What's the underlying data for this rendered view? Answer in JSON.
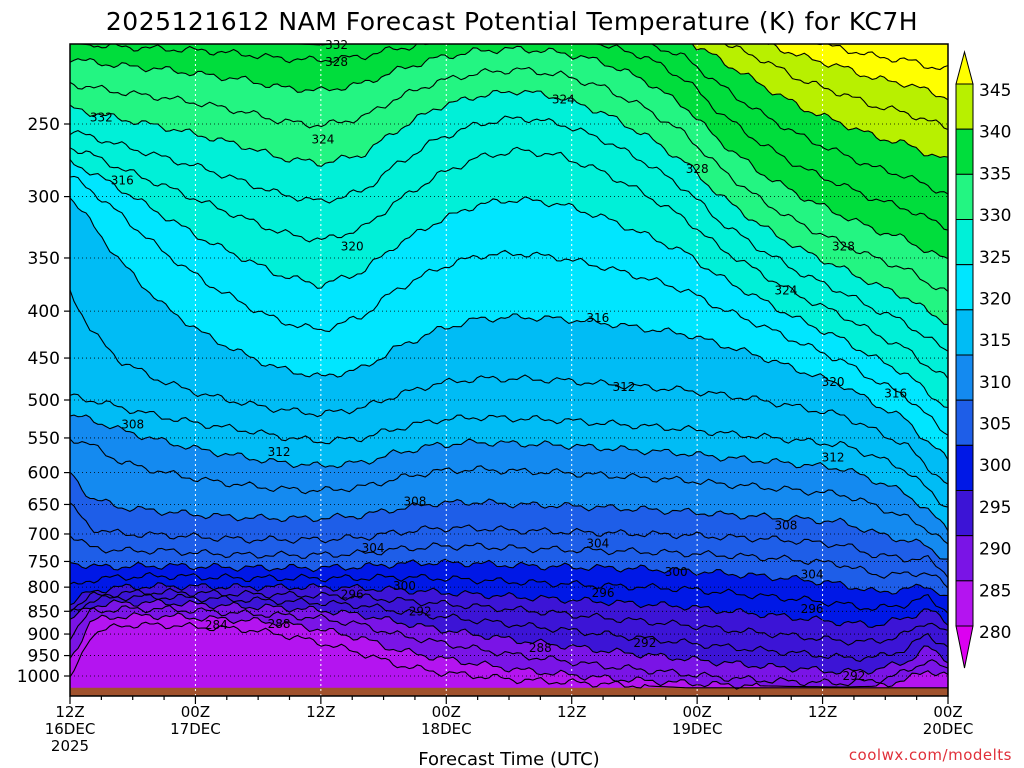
{
  "chart_data": {
    "type": "heatmap",
    "title": "2025121612 NAM Forecast Potential Temperature (K) for KC7H",
    "xlabel": "Forecast Time (UTC)",
    "ylabel": "",
    "credit": "coolwx.com/modelts",
    "x_ticks": [
      {
        "hour": 0,
        "line1": "12Z",
        "line2": "16DEC",
        "line3": "2025"
      },
      {
        "hour": 12,
        "line1": "00Z",
        "line2": "17DEC",
        "line3": ""
      },
      {
        "hour": 24,
        "line1": "12Z",
        "line2": "",
        "line3": ""
      },
      {
        "hour": 36,
        "line1": "00Z",
        "line2": "18DEC",
        "line3": ""
      },
      {
        "hour": 48,
        "line1": "12Z",
        "line2": "",
        "line3": ""
      },
      {
        "hour": 60,
        "line1": "00Z",
        "line2": "19DEC",
        "line3": ""
      },
      {
        "hour": 72,
        "line1": "12Z",
        "line2": "",
        "line3": ""
      },
      {
        "hour": 84,
        "line1": "00Z",
        "line2": "20DEC",
        "line3": ""
      }
    ],
    "x_range_hours": [
      0,
      84
    ],
    "y_axis": "pressure (hPa), log scale, inverted",
    "y_range": [
      1050,
      200
    ],
    "y_ticks": [
      250,
      300,
      350,
      400,
      450,
      500,
      550,
      600,
      650,
      700,
      750,
      800,
      850,
      900,
      950,
      1000
    ],
    "grid": true,
    "colorbar": {
      "ticks": [
        345,
        340,
        335,
        330,
        325,
        320,
        315,
        310,
        305,
        300,
        295,
        290,
        285,
        280
      ],
      "bins": [
        {
          "min": 340,
          "max": 345,
          "color": "#ffff00"
        },
        {
          "min": 335,
          "max": 340,
          "color": "#b8f000"
        },
        {
          "min": 330,
          "max": 335,
          "color": "#00dd3c"
        },
        {
          "min": 325,
          "max": 330,
          "color": "#23f582"
        },
        {
          "min": 320,
          "max": 325,
          "color": "#00f0d8"
        },
        {
          "min": 315,
          "max": 320,
          "color": "#00e6ff"
        },
        {
          "min": 310,
          "max": 315,
          "color": "#00bcf5"
        },
        {
          "min": 305,
          "max": 310,
          "color": "#148af0"
        },
        {
          "min": 300,
          "max": 305,
          "color": "#1e5ee8"
        },
        {
          "min": 295,
          "max": 300,
          "color": "#0018e6"
        },
        {
          "min": 290,
          "max": 295,
          "color": "#3c14d6"
        },
        {
          "min": 285,
          "max": 290,
          "color": "#7a14e6"
        },
        {
          "min": 280,
          "max": 285,
          "color": "#b414f0"
        },
        {
          "min": 275,
          "max": 280,
          "color": "#dc00f0"
        }
      ],
      "below_color": "#e60fff"
    },
    "terrain_color": "#a0522d",
    "surface_pressure_hPa": 1030,
    "contour_interval": 2,
    "key_times_h": [
      0,
      2,
      5,
      9,
      13,
      17,
      20,
      24,
      28,
      31,
      35,
      39,
      43,
      47,
      51,
      55,
      59,
      62,
      66,
      70,
      74,
      77,
      80,
      82,
      84
    ],
    "isentropes": [
      {
        "theta": 284,
        "p": [
          1010,
          900,
          880,
          880,
          885,
          890,
          900,
          920,
          945,
          970,
          990,
          1000,
          1010,
          1015,
          1020,
          1025,
          1030,
          1030,
          1030,
          1030,
          1030,
          1030,
          1030,
          1030,
          1030
        ]
      },
      {
        "theta": 286,
        "p": [
          960,
          870,
          860,
          860,
          865,
          870,
          875,
          890,
          910,
          935,
          955,
          970,
          985,
          995,
          1005,
          1012,
          1018,
          1022,
          1025,
          1027,
          1028,
          1026,
          1010,
          985,
          1000
        ]
      },
      {
        "theta": 288,
        "p": [
          905,
          850,
          845,
          845,
          850,
          855,
          858,
          865,
          880,
          900,
          918,
          935,
          950,
          962,
          975,
          985,
          995,
          1003,
          1010,
          1015,
          1018,
          1012,
          990,
          960,
          985
        ]
      },
      {
        "theta": 290,
        "p": [
          870,
          838,
          832,
          832,
          836,
          840,
          842,
          848,
          858,
          872,
          888,
          902,
          915,
          926,
          938,
          948,
          958,
          966,
          975,
          982,
          990,
          985,
          965,
          930,
          960
        ]
      },
      {
        "theta": 292,
        "p": [
          855,
          827,
          820,
          820,
          823,
          826,
          828,
          832,
          838,
          848,
          860,
          870,
          880,
          890,
          900,
          910,
          920,
          928,
          937,
          945,
          955,
          955,
          935,
          900,
          930
        ]
      },
      {
        "theta": 294,
        "p": [
          845,
          818,
          812,
          810,
          812,
          814,
          815,
          817,
          820,
          826,
          833,
          840,
          847,
          855,
          864,
          872,
          880,
          888,
          897,
          906,
          916,
          918,
          900,
          870,
          900
        ]
      },
      {
        "theta": 296,
        "p": [
          835,
          808,
          800,
          798,
          799,
          800,
          800,
          800,
          802,
          805,
          810,
          815,
          820,
          825,
          830,
          835,
          840,
          848,
          856,
          865,
          875,
          880,
          865,
          845,
          875
        ]
      },
      {
        "theta": 298,
        "p": [
          800,
          785,
          780,
          778,
          780,
          782,
          782,
          782,
          782,
          780,
          782,
          786,
          790,
          793,
          797,
          800,
          804,
          810,
          818,
          825,
          835,
          845,
          835,
          820,
          850
        ]
      },
      {
        "theta": 300,
        "p": [
          750,
          760,
          760,
          758,
          760,
          762,
          762,
          762,
          760,
          755,
          752,
          754,
          758,
          760,
          762,
          764,
          768,
          772,
          778,
          785,
          795,
          810,
          805,
          795,
          825
        ]
      },
      {
        "theta": 302,
        "p": [
          700,
          725,
          730,
          730,
          735,
          738,
          738,
          738,
          735,
          728,
          722,
          722,
          726,
          728,
          730,
          732,
          735,
          738,
          742,
          748,
          756,
          775,
          775,
          770,
          800
        ]
      },
      {
        "theta": 304,
        "p": [
          650,
          690,
          700,
          702,
          706,
          710,
          710,
          710,
          706,
          698,
          690,
          690,
          694,
          696,
          698,
          700,
          702,
          705,
          708,
          713,
          720,
          738,
          745,
          745,
          775
        ]
      },
      {
        "theta": 306,
        "p": [
          600,
          640,
          655,
          662,
          668,
          672,
          673,
          673,
          668,
          658,
          648,
          646,
          650,
          652,
          655,
          658,
          662,
          666,
          670,
          674,
          680,
          698,
          712,
          720,
          750
        ]
      },
      {
        "theta": 308,
        "p": [
          550,
          560,
          585,
          600,
          612,
          620,
          625,
          628,
          622,
          610,
          598,
          595,
          598,
          600,
          604,
          608,
          612,
          617,
          622,
          628,
          634,
          652,
          672,
          690,
          720
        ]
      },
      {
        "theta": 310,
        "p": [
          520,
          525,
          540,
          555,
          568,
          578,
          585,
          590,
          585,
          572,
          560,
          556,
          558,
          560,
          564,
          568,
          572,
          577,
          582,
          588,
          594,
          612,
          632,
          660,
          690
        ]
      },
      {
        "theta": 312,
        "p": [
          495,
          500,
          510,
          522,
          532,
          540,
          548,
          555,
          550,
          538,
          526,
          522,
          524,
          526,
          530,
          534,
          538,
          543,
          548,
          554,
          560,
          576,
          596,
          625,
          655
        ]
      },
      {
        "theta": 314,
        "p": [
          380,
          420,
          455,
          478,
          494,
          505,
          512,
          518,
          510,
          495,
          480,
          474,
          474,
          476,
          480,
          484,
          488,
          493,
          500,
          510,
          520,
          540,
          560,
          590,
          620
        ]
      },
      {
        "theta": 316,
        "p": [
          300,
          320,
          355,
          395,
          425,
          448,
          462,
          472,
          462,
          440,
          420,
          408,
          406,
          408,
          412,
          418,
          424,
          434,
          448,
          465,
          482,
          505,
          525,
          555,
          580
        ]
      },
      {
        "theta": 318,
        "p": [
          285,
          295,
          315,
          345,
          372,
          395,
          410,
          420,
          405,
          380,
          360,
          348,
          346,
          350,
          358,
          368,
          380,
          396,
          414,
          434,
          454,
          476,
          495,
          520,
          545
        ]
      },
      {
        "theta": 320,
        "p": [
          275,
          282,
          295,
          315,
          335,
          352,
          365,
          375,
          362,
          340,
          320,
          306,
          302,
          306,
          316,
          330,
          346,
          366,
          388,
          410,
          430,
          450,
          468,
          490,
          510
        ]
      },
      {
        "theta": 322,
        "p": [
          265,
          270,
          280,
          292,
          305,
          318,
          328,
          335,
          325,
          305,
          285,
          272,
          267,
          271,
          282,
          298,
          318,
          340,
          363,
          386,
          405,
          423,
          440,
          458,
          475
        ]
      },
      {
        "theta": 324,
        "p": [
          255,
          258,
          264,
          272,
          280,
          290,
          298,
          304,
          296,
          278,
          260,
          250,
          246,
          250,
          260,
          275,
          295,
          318,
          342,
          364,
          382,
          398,
          412,
          428,
          442
        ]
      },
      {
        "theta": 326,
        "p": [
          240,
          243,
          247,
          252,
          258,
          265,
          272,
          276,
          270,
          255,
          240,
          233,
          230,
          234,
          243,
          257,
          276,
          298,
          322,
          343,
          360,
          374,
          386,
          400,
          412
        ]
      },
      {
        "theta": 328,
        "p": [
          226,
          228,
          231,
          234,
          238,
          243,
          248,
          251,
          246,
          235,
          225,
          220,
          218,
          221,
          228,
          240,
          257,
          278,
          302,
          322,
          338,
          350,
          360,
          372,
          382
        ]
      },
      {
        "theta": 330,
        "p": [
          212,
          214,
          216,
          218,
          221,
          224,
          228,
          230,
          226,
          219,
          212,
          208,
          207,
          209,
          214,
          224,
          240,
          260,
          282,
          300,
          315,
          326,
          334,
          344,
          352
        ]
      },
      {
        "theta": 332,
        "p": [
          204,
          205,
          206,
          207,
          208,
          210,
          212,
          213,
          211,
          207,
          204,
          202,
          201,
          202,
          205,
          211,
          224,
          242,
          262,
          279,
          292,
          302,
          309,
          317,
          324
        ]
      },
      {
        "theta": 334,
        "p": [
          200,
          200,
          201,
          201,
          202,
          203,
          204,
          205,
          203,
          201,
          200,
          200,
          200,
          200,
          201,
          203,
          212,
          226,
          243,
          258,
          270,
          279,
          285,
          292,
          298
        ]
      },
      {
        "theta": 336,
        "p": [
          200,
          200,
          200,
          200,
          200,
          200,
          200,
          200,
          200,
          200,
          200,
          200,
          200,
          200,
          200,
          200,
          203,
          212,
          226,
          240,
          250,
          258,
          263,
          269,
          274
        ]
      },
      {
        "theta": 338,
        "p": [
          200,
          200,
          200,
          200,
          200,
          200,
          200,
          200,
          200,
          200,
          200,
          200,
          200,
          200,
          200,
          200,
          200,
          203,
          212,
          224,
          232,
          239,
          243,
          248,
          252
        ]
      },
      {
        "theta": 340,
        "p": [
          200,
          200,
          200,
          200,
          200,
          200,
          200,
          200,
          200,
          200,
          200,
          200,
          200,
          200,
          200,
          200,
          200,
          200,
          203,
          211,
          217,
          223,
          226,
          230,
          234
        ]
      },
      {
        "theta": 342,
        "p": [
          200,
          200,
          200,
          200,
          200,
          200,
          200,
          200,
          200,
          200,
          200,
          200,
          200,
          200,
          200,
          200,
          200,
          200,
          200,
          203,
          207,
          211,
          213,
          216,
          218
        ]
      }
    ],
    "contour_labels": [
      {
        "text": "332",
        "hour": 25.5,
        "p": 205
      },
      {
        "text": "328",
        "hour": 25.5,
        "p": 214
      },
      {
        "text": "332",
        "hour": 3,
        "p": 246
      },
      {
        "text": "324",
        "hour": 24.2,
        "p": 260
      },
      {
        "text": "324",
        "hour": 47.2,
        "p": 235
      },
      {
        "text": "328",
        "hour": 60,
        "p": 280
      },
      {
        "text": "316",
        "hour": 5,
        "p": 288
      },
      {
        "text": "320",
        "hour": 27,
        "p": 340
      },
      {
        "text": "328",
        "hour": 74,
        "p": 340
      },
      {
        "text": "324",
        "hour": 68.5,
        "p": 380
      },
      {
        "text": "316",
        "hour": 50.5,
        "p": 407
      },
      {
        "text": "312",
        "hour": 53,
        "p": 484
      },
      {
        "text": "320",
        "hour": 73,
        "p": 478
      },
      {
        "text": "316",
        "hour": 79,
        "p": 492
      },
      {
        "text": "308",
        "hour": 6,
        "p": 532
      },
      {
        "text": "312",
        "hour": 20,
        "p": 570
      },
      {
        "text": "312",
        "hour": 73,
        "p": 578
      },
      {
        "text": "308",
        "hour": 33,
        "p": 645
      },
      {
        "text": "308",
        "hour": 68.5,
        "p": 685
      },
      {
        "text": "304",
        "hour": 29,
        "p": 725
      },
      {
        "text": "304",
        "hour": 50.5,
        "p": 717
      },
      {
        "text": "300",
        "hour": 58,
        "p": 770
      },
      {
        "text": "304",
        "hour": 71,
        "p": 775
      },
      {
        "text": "300",
        "hour": 32,
        "p": 798
      },
      {
        "text": "296",
        "hour": 27,
        "p": 815
      },
      {
        "text": "296",
        "hour": 51,
        "p": 812
      },
      {
        "text": "292",
        "hour": 33.5,
        "p": 850
      },
      {
        "text": "296",
        "hour": 71,
        "p": 845
      },
      {
        "text": "284",
        "hour": 14,
        "p": 880
      },
      {
        "text": "288",
        "hour": 20,
        "p": 878
      },
      {
        "text": "292",
        "hour": 55,
        "p": 920
      },
      {
        "text": "288",
        "hour": 45,
        "p": 932
      },
      {
        "text": "292",
        "hour": 75,
        "p": 1000
      }
    ]
  }
}
